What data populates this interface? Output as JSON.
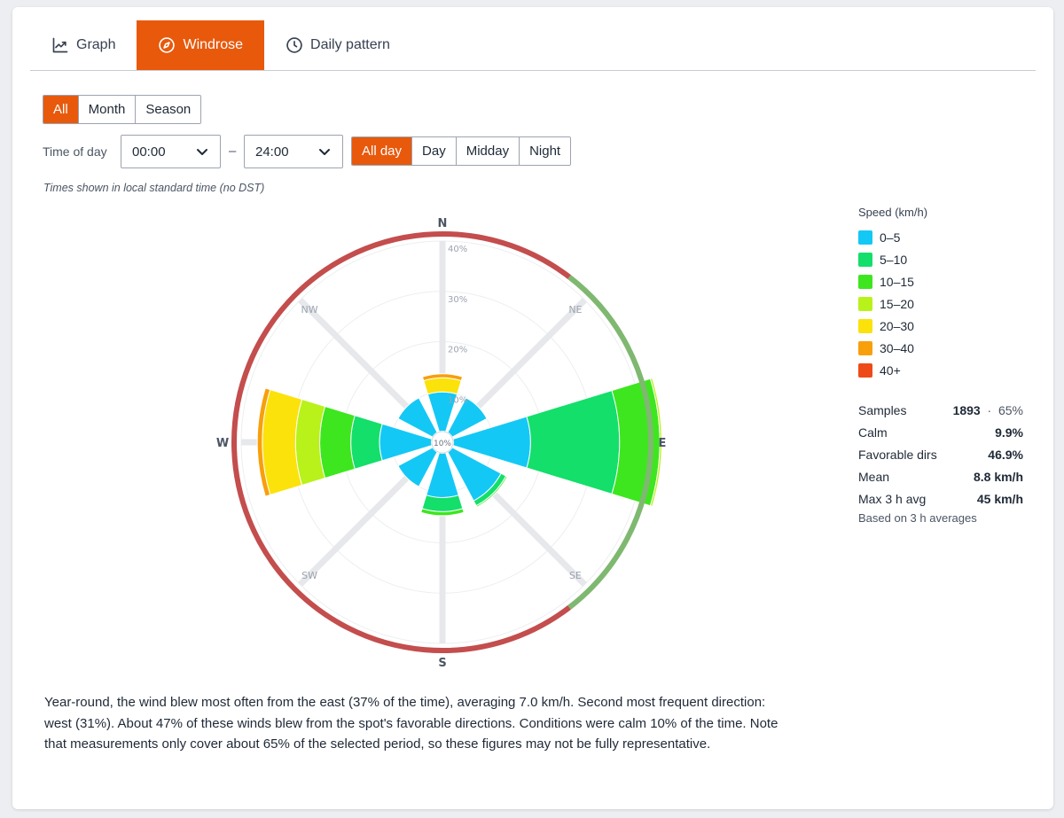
{
  "tabs": [
    {
      "label": "Graph",
      "icon": "line-chart-icon"
    },
    {
      "label": "Windrose",
      "icon": "compass-icon",
      "active": true
    },
    {
      "label": "Daily pattern",
      "icon": "clock-icon"
    }
  ],
  "period_buttons": [
    {
      "label": "All",
      "active": true
    },
    {
      "label": "Month"
    },
    {
      "label": "Season"
    }
  ],
  "time_of_day": {
    "label": "Time of day",
    "from": "00:00",
    "separator": "–",
    "to": "24:00",
    "presets": [
      {
        "label": "All day",
        "active": true
      },
      {
        "label": "Day"
      },
      {
        "label": "Midday"
      },
      {
        "label": "Night"
      }
    ]
  },
  "time_note": "Times shown in local standard time (no DST)",
  "chart_data": {
    "type": "windrose",
    "directions": [
      "N",
      "NE",
      "E",
      "SE",
      "S",
      "SW",
      "W",
      "NW"
    ],
    "ring_labels": [
      "10%",
      "20%",
      "30%",
      "40%"
    ],
    "center_label": "10%",
    "radial_max": 40,
    "speed_bins": [
      "0–5",
      "5–10",
      "10–15",
      "15–20",
      "20–30",
      "30–40",
      "40+"
    ],
    "bin_colors": [
      "#14c8f5",
      "#13df6a",
      "#3ee61f",
      "#b8f21a",
      "#fbe20a",
      "#f89f0c",
      "#ee4a18"
    ],
    "sectors": [
      {
        "direction": "N",
        "cumulative_radius": [
          10,
          10,
          10,
          10,
          12.8,
          13.6,
          13.6
        ]
      },
      {
        "direction": "NE",
        "cumulative_radius": [
          10,
          10,
          10,
          10,
          10,
          10,
          10
        ]
      },
      {
        "direction": "E",
        "cumulative_radius": [
          17.5,
          35.2,
          43.2,
          43.6,
          43.6,
          43.6,
          43.6
        ]
      },
      {
        "direction": "SE",
        "cumulative_radius": [
          13.2,
          14.3,
          14.6,
          14.6,
          14.6,
          14.6,
          14.6
        ]
      },
      {
        "direction": "S",
        "cumulative_radius": [
          11,
          13.8,
          14.6,
          14.6,
          14.6,
          14.6,
          14.6
        ]
      },
      {
        "direction": "SW",
        "cumulative_radius": [
          10,
          10,
          10,
          10,
          10,
          10,
          10
        ]
      },
      {
        "direction": "W",
        "cumulative_radius": [
          12.5,
          18.2,
          24.4,
          29.2,
          35.8,
          36.8,
          36.8
        ]
      },
      {
        "direction": "NW",
        "cumulative_radius": [
          10,
          10,
          10,
          10,
          10,
          10,
          10
        ]
      }
    ],
    "favorable_arc_deg": [
      37.5,
      142.5
    ],
    "favorable_color": "#7fb870",
    "unfavorable_color": "#c44d4d"
  },
  "legend": {
    "title": "Speed (km/h)",
    "items": [
      {
        "label": "0–5",
        "color": "#14c8f5"
      },
      {
        "label": "5–10",
        "color": "#13df6a"
      },
      {
        "label": "10–15",
        "color": "#3ee61f"
      },
      {
        "label": "15–20",
        "color": "#b8f21a"
      },
      {
        "label": "20–30",
        "color": "#fbe20a"
      },
      {
        "label": "30–40",
        "color": "#f89f0c"
      },
      {
        "label": "40+",
        "color": "#ee4a18"
      }
    ]
  },
  "stats": {
    "samples_label": "Samples",
    "samples_value": "1893",
    "samples_sep": "·",
    "samples_pct": "65%",
    "calm_label": "Calm",
    "calm_value": "9.9%",
    "favorable_label": "Favorable dirs",
    "favorable_value": "46.9%",
    "mean_label": "Mean",
    "mean_value": "8.8 km/h",
    "max_label": "Max 3 h avg",
    "max_value": "45 km/h",
    "based_on": "Based on 3 h averages"
  },
  "summary": "Year-round, the wind blew most often from the east (37% of the time), averaging 7.0 km/h. Second most frequent direction: west (31%). About 47% of these winds blew from the spot's favorable directions. Conditions were calm 10% of the time. Note that measurements only cover about 65% of the selected period, so these figures may not be fully representative."
}
